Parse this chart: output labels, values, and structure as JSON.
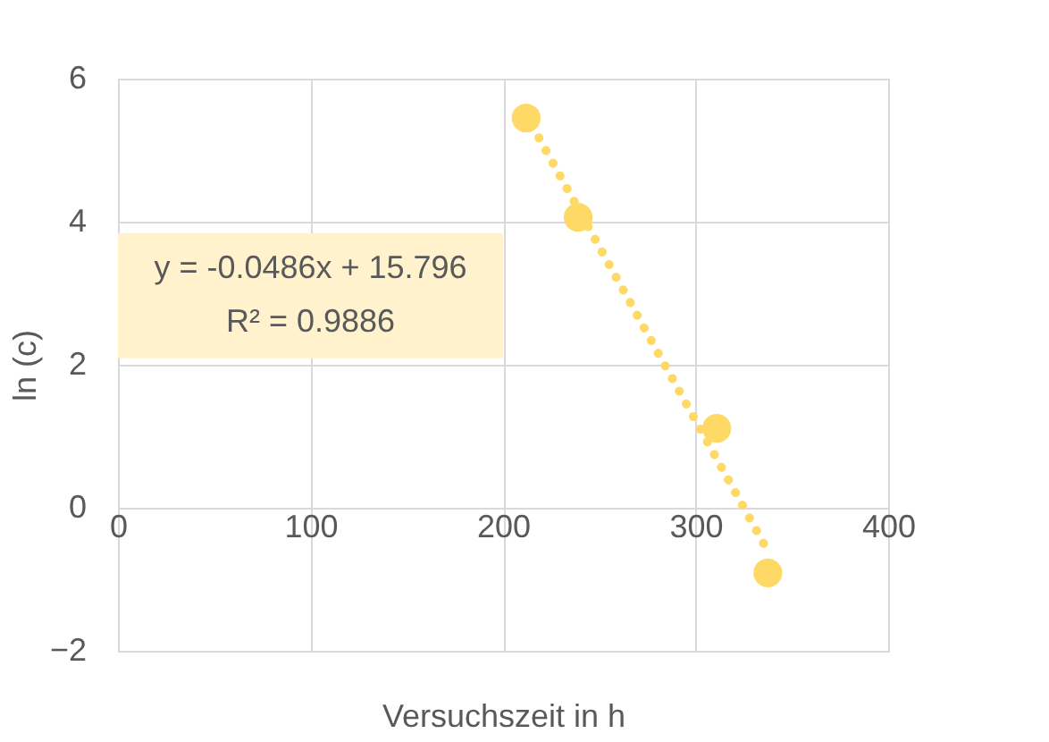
{
  "chart_data": {
    "type": "scatter",
    "xlabel": "Versuchszeit in h",
    "ylabel": "ln (c)",
    "xlim": [
      0,
      400
    ],
    "xticks": [
      0,
      100,
      200,
      300,
      400
    ],
    "ylim": [
      -2,
      6
    ],
    "yticks": [
      -2,
      0,
      2,
      4,
      6
    ],
    "grid": true,
    "marker": "circle",
    "series": [
      {
        "color": "#ffd966",
        "x": [
          212,
          239,
          311,
          337.5
        ],
        "values": [
          5.45,
          4.06,
          1.11,
          -0.91
        ]
      },
      {
        "type": "line",
        "line_style": "dotted",
        "marker": "none",
        "color": "#ffd966",
        "x": [
          215,
          337
        ],
        "values": [
          5.35,
          -0.58
        ]
      }
    ],
    "annotations": [
      "y = -0.0486x + 15.796",
      "R² = 0.9886"
    ]
  }
}
